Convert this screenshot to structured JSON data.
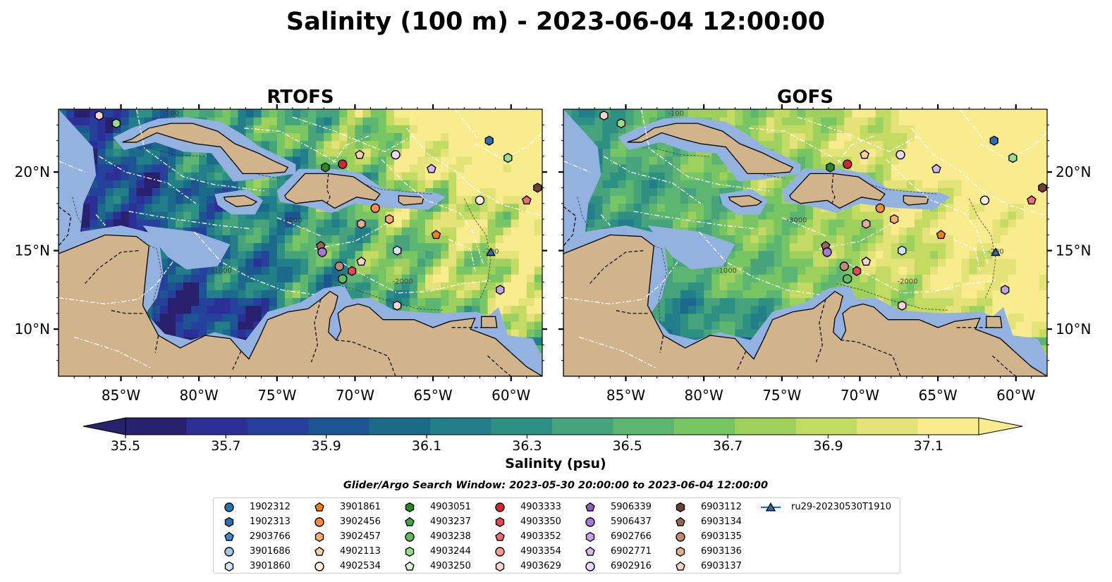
{
  "title": "Salinity (100 m) - 2023-06-04 12:00:00",
  "panels": [
    {
      "title": "RTOFS",
      "model": "rtofs"
    },
    {
      "title": "GOFS",
      "model": "gofs"
    }
  ],
  "map_extent": {
    "lon": [
      -89,
      -58
    ],
    "lat": [
      7,
      24
    ]
  },
  "lon_ticks": [
    {
      "value": -85,
      "label": "85°W"
    },
    {
      "value": -80,
      "label": "80°W"
    },
    {
      "value": -75,
      "label": "75°W"
    },
    {
      "value": -70,
      "label": "70°W"
    },
    {
      "value": -65,
      "label": "65°W"
    },
    {
      "value": -60,
      "label": "60°W"
    }
  ],
  "lat_ticks": [
    {
      "value": 20,
      "label": "20°N"
    },
    {
      "value": 15,
      "label": "15°N"
    },
    {
      "value": 10,
      "label": "10°N"
    }
  ],
  "contour_labels": [
    "-100",
    "-1000",
    "-3000",
    "-2000",
    "-200"
  ],
  "colorbar": {
    "label": "Salinity (psu)",
    "range": [
      35.5,
      37.2
    ],
    "ticks": [
      "35.5",
      "35.7",
      "35.9",
      "36.1",
      "36.3",
      "36.5",
      "36.7",
      "36.9",
      "37.1"
    ],
    "colors": [
      "#29206e",
      "#2b2f96",
      "#26419c",
      "#1d5592",
      "#1c6a8a",
      "#227e88",
      "#2e9083",
      "#47a37b",
      "#5cb671",
      "#78c564",
      "#9dd05c",
      "#c3da63",
      "#e3e37a",
      "#f8ec8e"
    ],
    "extend": "both"
  },
  "colors": {
    "land": "#d2b48c",
    "shelf": "#93b2e0",
    "border": "#000000"
  },
  "search_window": "Glider/Argo Search Window: 2023-05-30 20:00:00 to 2023-06-04 12:00:00",
  "platforms": [
    {
      "id": "1902312",
      "marker": "circle",
      "color": "#1f77b4"
    },
    {
      "id": "1902313",
      "marker": "hexagon",
      "color": "#2a6eb2"
    },
    {
      "id": "2903766",
      "marker": "pentagon",
      "color": "#3b8bd1"
    },
    {
      "id": "3901686",
      "marker": "circle",
      "color": "#9ecae9"
    },
    {
      "id": "3901860",
      "marker": "hexagon",
      "color": "#cfe5f5"
    },
    {
      "id": "3901861",
      "marker": "pentagon",
      "color": "#ff7f0e"
    },
    {
      "id": "3902456",
      "marker": "circle",
      "color": "#fd8d3c"
    },
    {
      "id": "3902457",
      "marker": "hexagon",
      "color": "#fdae6b"
    },
    {
      "id": "4902113",
      "marker": "pentagon",
      "color": "#fdd0a2"
    },
    {
      "id": "4902534",
      "marker": "circle",
      "color": "#feeddc"
    },
    {
      "id": "4903051",
      "marker": "hexagon",
      "color": "#238b22"
    },
    {
      "id": "4903237",
      "marker": "pentagon",
      "color": "#41a63c"
    },
    {
      "id": "4903238",
      "marker": "circle",
      "color": "#5cbf5a"
    },
    {
      "id": "4903244",
      "marker": "hexagon",
      "color": "#98df8a"
    },
    {
      "id": "4903250",
      "marker": "pentagon",
      "color": "#d6f5d0"
    },
    {
      "id": "4903333",
      "marker": "circle",
      "color": "#d62728"
    },
    {
      "id": "4903350",
      "marker": "hexagon",
      "color": "#e34a4e"
    },
    {
      "id": "4903352",
      "marker": "pentagon",
      "color": "#f26b6f"
    },
    {
      "id": "4903354",
      "marker": "circle",
      "color": "#ff9896"
    },
    {
      "id": "4903629",
      "marker": "hexagon",
      "color": "#fcd5d3"
    },
    {
      "id": "5906339",
      "marker": "pentagon",
      "color": "#8a5fc0"
    },
    {
      "id": "5906437",
      "marker": "circle",
      "color": "#a679d6"
    },
    {
      "id": "6902766",
      "marker": "hexagon",
      "color": "#c5a1e6"
    },
    {
      "id": "6902771",
      "marker": "pentagon",
      "color": "#d9b8f2"
    },
    {
      "id": "6902916",
      "marker": "circle",
      "color": "#ecd6fa"
    },
    {
      "id": "6903112",
      "marker": "hexagon",
      "color": "#6b4232"
    },
    {
      "id": "6903134",
      "marker": "pentagon",
      "color": "#9a6552"
    },
    {
      "id": "6903135",
      "marker": "circle",
      "color": "#c08a76"
    },
    {
      "id": "6903136",
      "marker": "hexagon",
      "color": "#e3ad9a"
    },
    {
      "id": "6903137",
      "marker": "pentagon",
      "color": "#f7d3c4"
    },
    {
      "id": "ru29-20230530T1910",
      "marker": "triangle-line",
      "color": "#1f77b4"
    }
  ],
  "observations": [
    {
      "id": "4903629",
      "lon": -86.4,
      "lat": 23.6
    },
    {
      "id": "4903244",
      "lon": -85.3,
      "lat": 23.1
    },
    {
      "id": "4903051",
      "lon": -71.9,
      "lat": 20.3
    },
    {
      "id": "4903333",
      "lon": -70.8,
      "lat": 20.5
    },
    {
      "id": "4902113",
      "lon": -69.7,
      "lat": 21.1
    },
    {
      "id": "6902916",
      "lon": -67.4,
      "lat": 21.1
    },
    {
      "id": "6902771",
      "lon": -65.1,
      "lat": 20.2
    },
    {
      "id": "1902313",
      "lon": -61.4,
      "lat": 22.0
    },
    {
      "id": "4903244",
      "lon": -60.2,
      "lat": 20.9
    },
    {
      "id": "6903112",
      "lon": -58.3,
      "lat": 19.0
    },
    {
      "id": "4902534",
      "lon": -62.0,
      "lat": 18.2
    },
    {
      "id": "4903352",
      "lon": -59.0,
      "lat": 18.2
    },
    {
      "id": "3902456",
      "lon": -68.7,
      "lat": 17.7
    },
    {
      "id": "3902457",
      "lon": -67.8,
      "lat": 17.0
    },
    {
      "id": "6903136",
      "lon": -69.6,
      "lat": 16.7
    },
    {
      "id": "3901861",
      "lon": -64.8,
      "lat": 16.0
    },
    {
      "id": "6903134",
      "lon": -72.2,
      "lat": 15.3
    },
    {
      "id": "5906437",
      "lon": -72.1,
      "lat": 14.9
    },
    {
      "id": "3901860",
      "lon": -67.3,
      "lat": 15.0
    },
    {
      "id": "6903137",
      "lon": -69.6,
      "lat": 14.3
    },
    {
      "id": "6903135",
      "lon": -71.0,
      "lat": 14.0
    },
    {
      "id": "4903350",
      "lon": -70.2,
      "lat": 13.7
    },
    {
      "id": "4903238",
      "lon": -70.8,
      "lat": 13.2
    },
    {
      "id": "6902766",
      "lon": -60.7,
      "lat": 12.5
    },
    {
      "id": "4903629",
      "lon": -67.3,
      "lat": 11.5
    },
    {
      "id": "ru29-20230530T1910",
      "lon": -61.3,
      "lat": 14.9
    }
  ]
}
